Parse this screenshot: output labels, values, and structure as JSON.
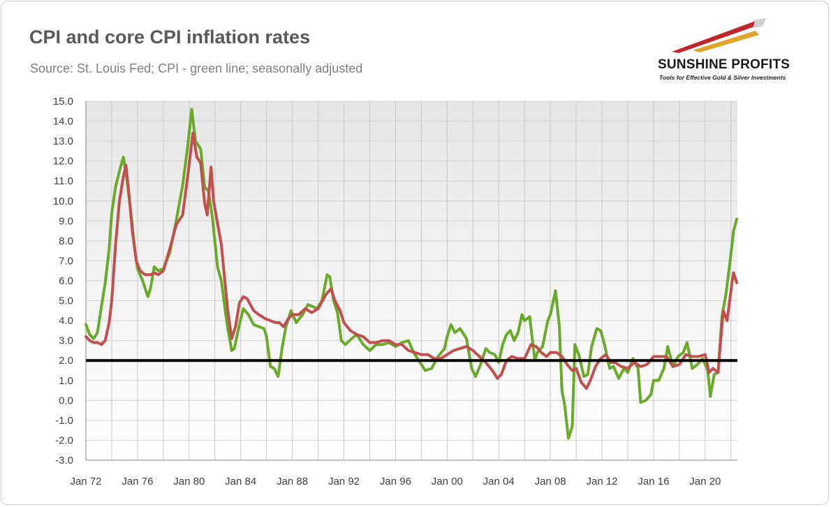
{
  "header": {
    "title": "CPI and core CPI inflation rates",
    "subtitle": "Source: St. Louis Fed; CPI - green line; seasonally adjusted"
  },
  "logo": {
    "name": "SUNSHINE PROFITS",
    "tagline": "Tools for Effective Gold & Silver Investments",
    "colors": [
      "#c0272d",
      "#e0a32c",
      "#c9c9c9"
    ]
  },
  "chart_data": {
    "type": "line",
    "title": "CPI and core CPI inflation rates",
    "ylim": [
      -3,
      15
    ],
    "y_ticks": [
      "15.0",
      "14.0",
      "13.0",
      "12.0",
      "11.0",
      "10.0",
      "9.0",
      "8.0",
      "7.0",
      "6.0",
      "5.0",
      "4.0",
      "3.0",
      "2.0",
      "1.0",
      "0.0",
      "-1.0",
      "-2.0",
      "-3.0"
    ],
    "x_ticks": [
      "Jan 72",
      "Jan 76",
      "Jan 80",
      "Jan 84",
      "Jan 88",
      "Jan 92",
      "Jan 96",
      "Jan 00",
      "Jan 04",
      "Jan 08",
      "Jan 12",
      "Jan 16",
      "Jan 20"
    ],
    "xlim": [
      1972.0,
      2022.5
    ],
    "grid": true,
    "reference_line": {
      "value": 2.0,
      "color": "#000000"
    },
    "series": [
      {
        "color": "#6aaa2a",
        "points": [
          [
            1972.0,
            3.8
          ],
          [
            1972.3,
            3.3
          ],
          [
            1972.6,
            3.1
          ],
          [
            1972.9,
            3.4
          ],
          [
            1973.2,
            4.7
          ],
          [
            1973.5,
            5.9
          ],
          [
            1973.8,
            7.6
          ],
          [
            1974.0,
            9.4
          ],
          [
            1974.3,
            10.7
          ],
          [
            1974.6,
            11.5
          ],
          [
            1974.9,
            12.2
          ],
          [
            1975.2,
            11.0
          ],
          [
            1975.5,
            9.3
          ],
          [
            1975.8,
            7.5
          ],
          [
            1976.0,
            6.6
          ],
          [
            1976.4,
            6.0
          ],
          [
            1976.8,
            5.2
          ],
          [
            1977.0,
            5.6
          ],
          [
            1977.3,
            6.7
          ],
          [
            1977.6,
            6.5
          ],
          [
            1978.0,
            6.6
          ],
          [
            1978.5,
            7.4
          ],
          [
            1979.0,
            9.0
          ],
          [
            1979.5,
            10.8
          ],
          [
            1979.9,
            12.8
          ],
          [
            1980.2,
            14.6
          ],
          [
            1980.5,
            13.0
          ],
          [
            1980.9,
            12.6
          ],
          [
            1981.2,
            10.7
          ],
          [
            1981.5,
            10.5
          ],
          [
            1981.8,
            9.2
          ],
          [
            1982.2,
            6.7
          ],
          [
            1982.5,
            6.0
          ],
          [
            1982.8,
            4.5
          ],
          [
            1983.0,
            3.6
          ],
          [
            1983.3,
            2.5
          ],
          [
            1983.5,
            2.6
          ],
          [
            1983.9,
            3.8
          ],
          [
            1984.2,
            4.6
          ],
          [
            1984.6,
            4.3
          ],
          [
            1985.0,
            3.8
          ],
          [
            1985.4,
            3.7
          ],
          [
            1985.8,
            3.6
          ],
          [
            1986.0,
            3.2
          ],
          [
            1986.3,
            1.7
          ],
          [
            1986.6,
            1.6
          ],
          [
            1986.9,
            1.2
          ],
          [
            1987.2,
            2.6
          ],
          [
            1987.5,
            3.7
          ],
          [
            1987.9,
            4.5
          ],
          [
            1988.3,
            3.9
          ],
          [
            1988.8,
            4.3
          ],
          [
            1989.2,
            4.8
          ],
          [
            1989.6,
            4.7
          ],
          [
            1989.9,
            4.6
          ],
          [
            1990.3,
            5.0
          ],
          [
            1990.7,
            6.3
          ],
          [
            1990.9,
            6.2
          ],
          [
            1991.2,
            5.0
          ],
          [
            1991.5,
            4.4
          ],
          [
            1991.8,
            3.0
          ],
          [
            1992.1,
            2.8
          ],
          [
            1992.6,
            3.1
          ],
          [
            1993.0,
            3.3
          ],
          [
            1993.5,
            2.8
          ],
          [
            1994.0,
            2.5
          ],
          [
            1994.5,
            2.8
          ],
          [
            1995.0,
            2.8
          ],
          [
            1995.5,
            2.9
          ],
          [
            1996.0,
            2.7
          ],
          [
            1996.5,
            2.9
          ],
          [
            1997.0,
            3.0
          ],
          [
            1997.4,
            2.4
          ],
          [
            1997.9,
            1.9
          ],
          [
            1998.3,
            1.5
          ],
          [
            1998.8,
            1.6
          ],
          [
            1999.3,
            2.2
          ],
          [
            1999.8,
            2.6
          ],
          [
            2000.0,
            3.2
          ],
          [
            2000.3,
            3.8
          ],
          [
            2000.6,
            3.4
          ],
          [
            2001.0,
            3.6
          ],
          [
            2001.5,
            3.1
          ],
          [
            2001.9,
            1.6
          ],
          [
            2002.2,
            1.2
          ],
          [
            2002.6,
            1.8
          ],
          [
            2003.0,
            2.6
          ],
          [
            2003.3,
            2.4
          ],
          [
            2003.7,
            2.3
          ],
          [
            2004.0,
            1.9
          ],
          [
            2004.3,
            2.8
          ],
          [
            2004.6,
            3.3
          ],
          [
            2004.9,
            3.5
          ],
          [
            2005.2,
            3.0
          ],
          [
            2005.5,
            3.4
          ],
          [
            2005.8,
            4.3
          ],
          [
            2006.0,
            4.0
          ],
          [
            2006.4,
            4.2
          ],
          [
            2006.8,
            2.0
          ],
          [
            2007.0,
            2.4
          ],
          [
            2007.4,
            2.7
          ],
          [
            2007.8,
            4.0
          ],
          [
            2008.0,
            4.3
          ],
          [
            2008.4,
            5.5
          ],
          [
            2008.7,
            3.7
          ],
          [
            2008.9,
            0.5
          ],
          [
            2009.1,
            -0.2
          ],
          [
            2009.4,
            -1.9
          ],
          [
            2009.7,
            -1.3
          ],
          [
            2009.9,
            2.8
          ],
          [
            2010.2,
            2.3
          ],
          [
            2010.6,
            1.2
          ],
          [
            2010.9,
            1.3
          ],
          [
            2011.2,
            2.7
          ],
          [
            2011.6,
            3.6
          ],
          [
            2011.9,
            3.5
          ],
          [
            2012.2,
            2.8
          ],
          [
            2012.6,
            1.6
          ],
          [
            2012.9,
            1.7
          ],
          [
            2013.3,
            1.1
          ],
          [
            2013.7,
            1.6
          ],
          [
            2014.0,
            1.4
          ],
          [
            2014.4,
            2.1
          ],
          [
            2014.8,
            1.6
          ],
          [
            2015.0,
            -0.1
          ],
          [
            2015.4,
            0.0
          ],
          [
            2015.8,
            0.3
          ],
          [
            2016.0,
            1.0
          ],
          [
            2016.4,
            1.0
          ],
          [
            2016.8,
            1.6
          ],
          [
            2017.1,
            2.7
          ],
          [
            2017.5,
            1.7
          ],
          [
            2017.9,
            2.2
          ],
          [
            2018.3,
            2.4
          ],
          [
            2018.6,
            2.9
          ],
          [
            2019.0,
            1.6
          ],
          [
            2019.4,
            1.8
          ],
          [
            2019.8,
            2.1
          ],
          [
            2020.2,
            1.5
          ],
          [
            2020.4,
            0.2
          ],
          [
            2020.7,
            1.3
          ],
          [
            2021.0,
            1.4
          ],
          [
            2021.3,
            4.2
          ],
          [
            2021.6,
            5.3
          ],
          [
            2021.9,
            6.8
          ],
          [
            2022.2,
            8.5
          ],
          [
            2022.45,
            9.1
          ]
        ]
      },
      {
        "color": "#c0504d",
        "points": [
          [
            1972.0,
            3.2
          ],
          [
            1972.3,
            3.0
          ],
          [
            1972.6,
            2.9
          ],
          [
            1972.9,
            2.9
          ],
          [
            1973.2,
            2.8
          ],
          [
            1973.5,
            3.0
          ],
          [
            1973.8,
            3.9
          ],
          [
            1974.0,
            5.0
          ],
          [
            1974.3,
            7.8
          ],
          [
            1974.6,
            10.0
          ],
          [
            1974.9,
            11.2
          ],
          [
            1975.1,
            11.8
          ],
          [
            1975.3,
            10.6
          ],
          [
            1975.6,
            8.5
          ],
          [
            1975.9,
            7.0
          ],
          [
            1976.2,
            6.5
          ],
          [
            1976.6,
            6.3
          ],
          [
            1977.0,
            6.3
          ],
          [
            1977.3,
            6.4
          ],
          [
            1977.6,
            6.3
          ],
          [
            1978.0,
            6.5
          ],
          [
            1978.5,
            7.6
          ],
          [
            1979.0,
            8.8
          ],
          [
            1979.5,
            9.3
          ],
          [
            1979.9,
            11.3
          ],
          [
            1980.3,
            13.4
          ],
          [
            1980.6,
            12.2
          ],
          [
            1980.9,
            11.9
          ],
          [
            1981.2,
            9.9
          ],
          [
            1981.4,
            9.3
          ],
          [
            1981.7,
            11.7
          ],
          [
            1981.9,
            10.0
          ],
          [
            1982.2,
            8.9
          ],
          [
            1982.5,
            7.8
          ],
          [
            1982.8,
            5.8
          ],
          [
            1983.0,
            4.5
          ],
          [
            1983.3,
            3.1
          ],
          [
            1983.6,
            3.7
          ],
          [
            1983.9,
            4.9
          ],
          [
            1984.2,
            5.2
          ],
          [
            1984.5,
            5.1
          ],
          [
            1985.0,
            4.5
          ],
          [
            1985.4,
            4.3
          ],
          [
            1985.9,
            4.1
          ],
          [
            1986.3,
            4.0
          ],
          [
            1986.7,
            3.9
          ],
          [
            1987.0,
            3.9
          ],
          [
            1987.3,
            3.7
          ],
          [
            1987.7,
            4.1
          ],
          [
            1988.0,
            4.3
          ],
          [
            1988.5,
            4.3
          ],
          [
            1989.0,
            4.6
          ],
          [
            1989.5,
            4.4
          ],
          [
            1990.0,
            4.6
          ],
          [
            1990.6,
            5.3
          ],
          [
            1991.0,
            5.6
          ],
          [
            1991.3,
            5.0
          ],
          [
            1991.7,
            4.5
          ],
          [
            1992.0,
            3.9
          ],
          [
            1992.5,
            3.5
          ],
          [
            1993.0,
            3.3
          ],
          [
            1993.5,
            3.2
          ],
          [
            1994.0,
            2.9
          ],
          [
            1994.5,
            2.9
          ],
          [
            1995.0,
            3.0
          ],
          [
            1995.5,
            3.0
          ],
          [
            1996.0,
            2.8
          ],
          [
            1996.5,
            2.8
          ],
          [
            1997.0,
            2.5
          ],
          [
            1997.5,
            2.4
          ],
          [
            1998.0,
            2.3
          ],
          [
            1998.5,
            2.3
          ],
          [
            1999.0,
            2.1
          ],
          [
            1999.5,
            2.1
          ],
          [
            2000.0,
            2.3
          ],
          [
            2000.5,
            2.5
          ],
          [
            2001.0,
            2.6
          ],
          [
            2001.5,
            2.7
          ],
          [
            2002.0,
            2.5
          ],
          [
            2002.5,
            2.2
          ],
          [
            2003.0,
            1.9
          ],
          [
            2003.5,
            1.5
          ],
          [
            2003.9,
            1.1
          ],
          [
            2004.2,
            1.3
          ],
          [
            2004.6,
            2.0
          ],
          [
            2005.0,
            2.2
          ],
          [
            2005.5,
            2.1
          ],
          [
            2006.0,
            2.1
          ],
          [
            2006.5,
            2.8
          ],
          [
            2006.9,
            2.7
          ],
          [
            2007.3,
            2.4
          ],
          [
            2007.7,
            2.2
          ],
          [
            2008.0,
            2.4
          ],
          [
            2008.5,
            2.4
          ],
          [
            2008.9,
            2.2
          ],
          [
            2009.3,
            1.8
          ],
          [
            2009.7,
            1.5
          ],
          [
            2010.0,
            1.6
          ],
          [
            2010.4,
            0.9
          ],
          [
            2010.8,
            0.6
          ],
          [
            2011.1,
            1.0
          ],
          [
            2011.5,
            1.7
          ],
          [
            2011.9,
            2.1
          ],
          [
            2012.3,
            2.3
          ],
          [
            2012.7,
            1.9
          ],
          [
            2013.0,
            1.9
          ],
          [
            2013.5,
            1.7
          ],
          [
            2014.0,
            1.6
          ],
          [
            2014.5,
            1.9
          ],
          [
            2015.0,
            1.7
          ],
          [
            2015.5,
            1.8
          ],
          [
            2016.0,
            2.2
          ],
          [
            2016.5,
            2.2
          ],
          [
            2017.0,
            2.2
          ],
          [
            2017.5,
            1.7
          ],
          [
            2018.0,
            1.8
          ],
          [
            2018.5,
            2.3
          ],
          [
            2019.0,
            2.2
          ],
          [
            2019.5,
            2.2
          ],
          [
            2020.0,
            2.3
          ],
          [
            2020.3,
            1.4
          ],
          [
            2020.6,
            1.6
          ],
          [
            2021.0,
            1.4
          ],
          [
            2021.2,
            3.0
          ],
          [
            2021.4,
            4.5
          ],
          [
            2021.7,
            4.0
          ],
          [
            2021.9,
            5.0
          ],
          [
            2022.1,
            6.0
          ],
          [
            2022.2,
            6.4
          ],
          [
            2022.45,
            5.9
          ]
        ]
      }
    ]
  }
}
